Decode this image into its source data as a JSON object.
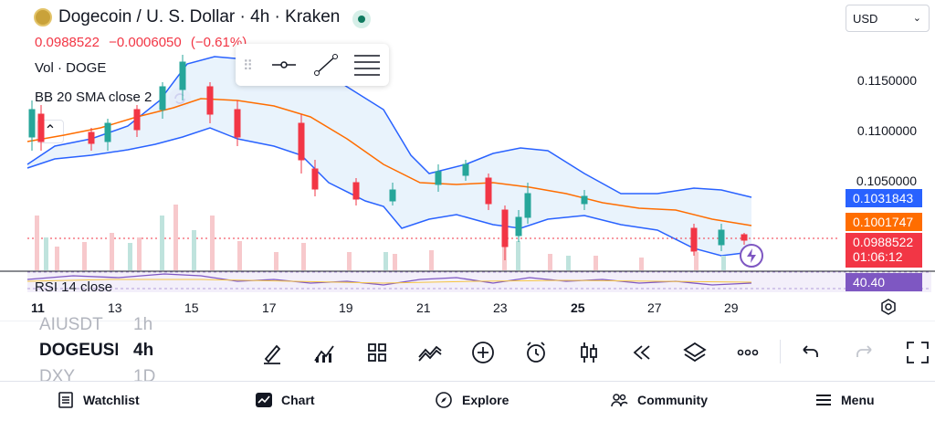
{
  "header": {
    "title": "Dogecoin / U. S. Dollar · 4h · Kraken",
    "last_price": "0.0988522",
    "change": "−0.0006050",
    "change_pct": "(−0.61%)",
    "currency": "USD"
  },
  "indicators": {
    "volume_label": "Vol · DOGE",
    "bb_label": "BB 20 SMA close 2",
    "rsi_label": "RSI 14 close"
  },
  "price_axis": {
    "ticks": [
      "0.1150000",
      "0.1100000",
      "0.1050000"
    ],
    "tags": {
      "bb_upper": "0.1031843",
      "bb_basis": "0.1001747",
      "last": "0.0988522",
      "countdown": "01:06:12",
      "rsi": "40.40"
    }
  },
  "time_axis": [
    "11",
    "13",
    "15",
    "17",
    "19",
    "21",
    "23",
    "25",
    "27",
    "29"
  ],
  "symbol_roll": {
    "prev": "AIUSDT",
    "current": "DOGEUSD",
    "next": "DXY",
    "prev_interval": "1h",
    "current_interval": "4h",
    "next_interval": "1D"
  },
  "nav": {
    "watchlist": "Watchlist",
    "chart": "Chart",
    "explore": "Explore",
    "community": "Community",
    "menu": "Menu"
  },
  "colors": {
    "up": "#26a69a",
    "down": "#f23645",
    "bb_band": "#2962ff",
    "bb_basis": "#ff6d00",
    "bb_fill": "#e3f0fb",
    "rsi": "#7e57c2",
    "rsi_tag": "#7e57c2",
    "last_tag": "#f23645",
    "basis_tag": "#ff6d00",
    "upper_tag": "#2962ff"
  },
  "icons": [
    "brush-icon",
    "indicators-icon",
    "layouts-icon",
    "compare-icon",
    "add-icon",
    "alert-clock-icon",
    "candles-icon",
    "replay-icon",
    "layers-icon",
    "more-icon",
    "undo-icon",
    "redo-icon",
    "fullscreen-icon"
  ]
}
